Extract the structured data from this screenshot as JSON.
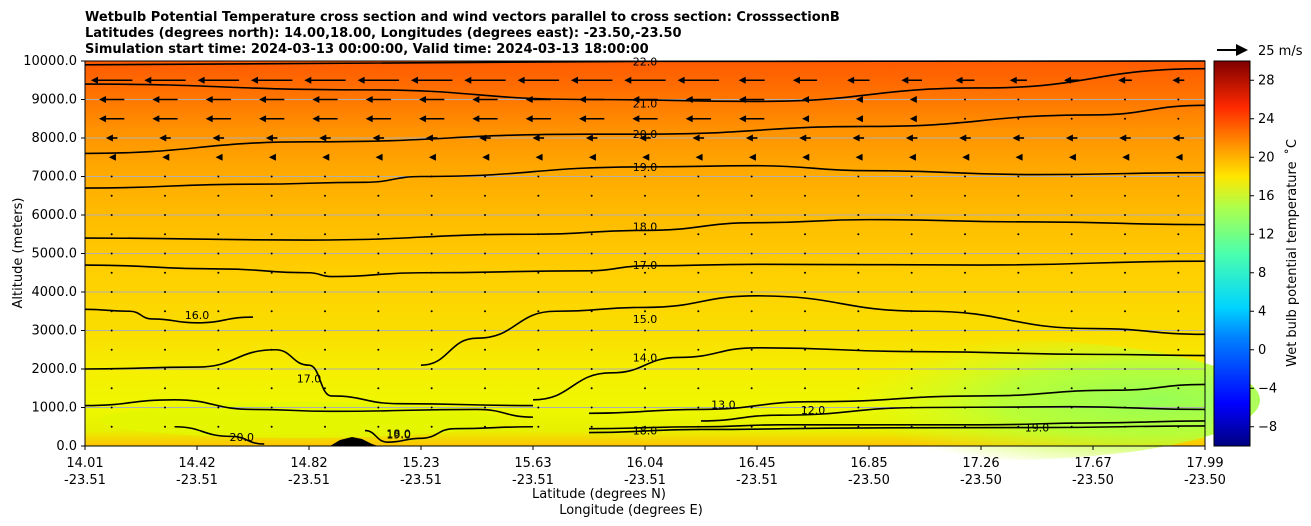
{
  "chart_data": {
    "type": "contour_cross_section",
    "title_lines": [
      "Wetbulb Potential Temperature cross section and wind vectors parallel to cross section: CrosssectionB",
      "Latitudes (degrees north): 14.00,18.00, Longitudes (degrees east): -23.50,-23.50",
      "Simulation start time: 2024-03-13 00:00:00, Valid time: 2024-03-13 18:00:00"
    ],
    "ylabel": "Altitude (meters)",
    "xlabel_lat": "Latitude (degrees N)",
    "xlabel_lon": "Longitude (degrees E)",
    "ylim": [
      0,
      10000
    ],
    "xlim": [
      0,
      1
    ],
    "y_ticks": [
      0,
      1000,
      2000,
      3000,
      4000,
      5000,
      6000,
      7000,
      8000,
      9000,
      10000
    ],
    "y_tick_labels": [
      "0.0",
      "1000.0",
      "2000.0",
      "3000.0",
      "4000.0",
      "5000.0",
      "6000.0",
      "7000.0",
      "8000.0",
      "9000.0",
      "10000.0"
    ],
    "x_ticks": [
      0.0,
      0.1,
      0.2,
      0.3,
      0.4,
      0.5,
      0.6,
      0.7,
      0.8,
      0.9,
      1.0
    ],
    "x_tick_lat": [
      "14.01",
      "14.42",
      "14.82",
      "15.23",
      "15.63",
      "16.04",
      "16.45",
      "16.85",
      "17.26",
      "17.67",
      "17.99"
    ],
    "x_tick_lon": [
      "-23.51",
      "-23.51",
      "-23.51",
      "-23.51",
      "-23.51",
      "-23.51",
      "-23.51",
      "-23.50",
      "-23.50",
      "-23.50",
      "-23.50"
    ],
    "colorbar": {
      "label": "Wet bulb potential temperature  ˚C",
      "vmin": -10,
      "vmax": 30,
      "ticks": [
        -8,
        -4,
        0,
        4,
        8,
        12,
        16,
        20,
        24,
        28
      ],
      "tick_labels": [
        "−8",
        "−4",
        "0",
        "4",
        "8",
        "12",
        "16",
        "20",
        "24",
        "28"
      ]
    },
    "quiver_key": {
      "label": "25 m/s",
      "value": 25
    },
    "contours": [
      {
        "level": 22.0,
        "label": "22.0",
        "points": [
          [
            0,
            9900
          ],
          [
            0.5,
            9990
          ],
          [
            1,
            10000
          ]
        ],
        "label_at": [
          0.5,
          9990
        ]
      },
      {
        "level": 21.0,
        "label": "21.0",
        "points": [
          [
            0,
            9400
          ],
          [
            0.25,
            9250
          ],
          [
            0.45,
            9000
          ],
          [
            0.6,
            8950
          ],
          [
            0.8,
            9300
          ],
          [
            1,
            9800
          ]
        ],
        "label_at": [
          0.5,
          8900
        ]
      },
      {
        "level": 20.0,
        "label": "20.0",
        "points": [
          [
            0,
            7600
          ],
          [
            0.2,
            7900
          ],
          [
            0.45,
            8100
          ],
          [
            0.5,
            8100
          ],
          [
            0.7,
            8300
          ],
          [
            0.9,
            8600
          ],
          [
            1,
            8850
          ]
        ],
        "label_at": [
          0.5,
          8100
        ]
      },
      {
        "level": 19.0,
        "label": "19.0",
        "points": [
          [
            0,
            6700
          ],
          [
            0.15,
            6800
          ],
          [
            0.25,
            6850
          ],
          [
            0.3,
            7000
          ],
          [
            0.5,
            7250
          ],
          [
            0.6,
            7280
          ],
          [
            0.7,
            7150
          ],
          [
            0.85,
            7050
          ],
          [
            1,
            7100
          ]
        ],
        "label_at": [
          0.5,
          7250
        ]
      },
      {
        "level": 18.0,
        "label": "18.0",
        "points": [
          [
            0,
            5400
          ],
          [
            0.2,
            5350
          ],
          [
            0.4,
            5500
          ],
          [
            0.5,
            5600
          ],
          [
            0.6,
            5800
          ],
          [
            0.7,
            5880
          ],
          [
            0.85,
            5820
          ],
          [
            1,
            5750
          ]
        ],
        "label_at": [
          0.5,
          5700
        ]
      },
      {
        "level": 17.0,
        "label": "17.0",
        "points": [
          [
            0,
            4700
          ],
          [
            0.12,
            4600
          ],
          [
            0.2,
            4500
          ],
          [
            0.22,
            4400
          ],
          [
            0.3,
            4500
          ],
          [
            0.45,
            4550
          ],
          [
            0.5,
            4680
          ],
          [
            0.6,
            4720
          ],
          [
            0.8,
            4700
          ],
          [
            1,
            4800
          ]
        ],
        "label_at": [
          0.5,
          4700
        ]
      },
      {
        "level": 16.0,
        "label": "16.0",
        "points": [
          [
            0,
            3550
          ],
          [
            0.04,
            3500
          ],
          [
            0.06,
            3300
          ],
          [
            0.1,
            3200
          ],
          [
            0.15,
            3350
          ]
        ],
        "label_at": [
          0.1,
          3400
        ]
      },
      {
        "level": 15.0,
        "label": "15.0",
        "points": [
          [
            0.3,
            2100
          ],
          [
            0.35,
            2800
          ],
          [
            0.42,
            3500
          ],
          [
            0.5,
            3600
          ],
          [
            0.6,
            3900
          ],
          [
            0.75,
            3500
          ],
          [
            0.9,
            3050
          ],
          [
            1,
            2900
          ]
        ],
        "label_at": [
          0.5,
          3300
        ]
      },
      {
        "level": 14.0,
        "label": "14.0",
        "points": [
          [
            0.4,
            1200
          ],
          [
            0.47,
            1900
          ],
          [
            0.53,
            2300
          ],
          [
            0.6,
            2550
          ],
          [
            0.75,
            2450
          ],
          [
            0.9,
            2380
          ],
          [
            1,
            2350
          ]
        ],
        "label_at": [
          0.5,
          2300
        ]
      },
      {
        "level": 13.0,
        "label": "13.0",
        "points": [
          [
            0.45,
            850
          ],
          [
            0.55,
            950
          ],
          [
            0.65,
            1150
          ],
          [
            0.8,
            1300
          ],
          [
            0.92,
            1450
          ],
          [
            1,
            1600
          ]
        ],
        "label_at": [
          0.57,
          1080
        ]
      },
      {
        "level": 12.0,
        "label": "12.0",
        "points": [
          [
            0.55,
            650
          ],
          [
            0.62,
            800
          ],
          [
            0.75,
            1000
          ],
          [
            0.88,
            1020
          ],
          [
            1,
            950
          ]
        ],
        "label_at": [
          0.65,
          940
        ]
      },
      {
        "level": 17.0,
        "label": "17.0",
        "points": [
          [
            0,
            2000
          ],
          [
            0.1,
            2050
          ],
          [
            0.17,
            2500
          ],
          [
            0.2,
            2100
          ],
          [
            0.22,
            1300
          ],
          [
            0.28,
            1100
          ],
          [
            0.4,
            1050
          ]
        ],
        "label_at": [
          0.2,
          1750
        ]
      },
      {
        "level": 18.0,
        "label": "18.0",
        "points": [
          [
            0,
            1050
          ],
          [
            0.08,
            1200
          ],
          [
            0.15,
            950
          ],
          [
            0.22,
            900
          ],
          [
            0.35,
            950
          ],
          [
            0.4,
            750
          ]
        ],
        "label_at": [
          0.28,
          330
        ]
      },
      {
        "level": 19.0,
        "label": "19.0",
        "points": [
          [
            0.25,
            400
          ],
          [
            0.27,
            100
          ],
          [
            0.3,
            200
          ],
          [
            0.33,
            450
          ],
          [
            0.4,
            500
          ]
        ],
        "label_at": [
          0.28,
          300
        ]
      },
      {
        "level": 20.0,
        "label": "20.0",
        "points": [
          [
            0.08,
            500
          ],
          [
            0.13,
            250
          ],
          [
            0.16,
            50
          ]
        ],
        "label_at": [
          0.14,
          230
        ]
      },
      {
        "level": 18.0,
        "label": "18.0",
        "points": [
          [
            0.45,
            450
          ],
          [
            0.55,
            500
          ],
          [
            0.62,
            550
          ],
          [
            0.8,
            550
          ],
          [
            0.9,
            600
          ],
          [
            1,
            650
          ]
        ],
        "label_at": [
          0.5,
          400
        ]
      },
      {
        "level": 19.0,
        "label": "19.0",
        "points": [
          [
            0.45,
            350
          ],
          [
            0.55,
            430
          ],
          [
            0.7,
            470
          ],
          [
            0.85,
            480
          ],
          [
            1,
            520
          ]
        ],
        "label_at": [
          0.85,
          480
        ]
      }
    ]
  }
}
